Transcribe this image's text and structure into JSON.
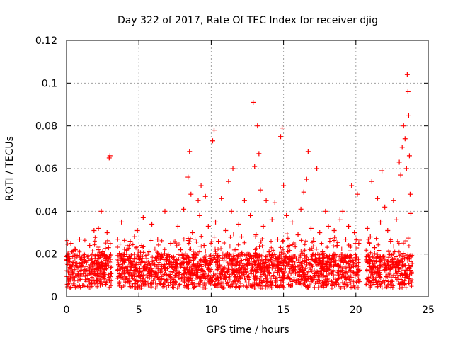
{
  "chart_data": {
    "type": "scatter",
    "title": "Day 322 of 2017, Rate Of TEC Index for receiver djig",
    "xlabel": "GPS time / hours",
    "ylabel": "ROTI / TECUs",
    "xlim": [
      0,
      25
    ],
    "ylim": [
      0,
      0.12
    ],
    "x_ticks": [
      0,
      5,
      10,
      15,
      20,
      25
    ],
    "x_tick_labels": [
      "0",
      "5",
      "10",
      "15",
      "20",
      "25"
    ],
    "y_ticks": [
      0,
      0.02,
      0.04,
      0.06,
      0.08,
      0.1,
      0.12
    ],
    "y_tick_labels": [
      "0",
      "0.02",
      "0.04",
      "0.06",
      "0.08",
      "0.1",
      "0.12"
    ],
    "grid": true,
    "marker": "+",
    "marker_color": "#ff0000",
    "series": [
      {
        "name": "ROTI",
        "points": [
          [
            0.1,
            0.012
          ],
          [
            0.2,
            0.018
          ],
          [
            0.3,
            0.025
          ],
          [
            0.4,
            0.009
          ],
          [
            0.5,
            0.016
          ],
          [
            0.6,
            0.022
          ],
          [
            0.8,
            0.011
          ],
          [
            0.9,
            0.027
          ],
          [
            1.0,
            0.014
          ],
          [
            1.2,
            0.02
          ],
          [
            1.3,
            0.008
          ],
          [
            1.5,
            0.017
          ],
          [
            1.6,
            0.024
          ],
          [
            1.8,
            0.012
          ],
          [
            1.9,
            0.031
          ],
          [
            2.0,
            0.019
          ],
          [
            2.1,
            0.01
          ],
          [
            2.2,
            0.032
          ],
          [
            2.3,
            0.015
          ],
          [
            2.4,
            0.04
          ],
          [
            2.5,
            0.021
          ],
          [
            2.6,
            0.013
          ],
          [
            2.7,
            0.018
          ],
          [
            2.8,
            0.03
          ],
          [
            2.9,
            0.023
          ],
          [
            2.95,
            0.065
          ],
          [
            3.0,
            0.066
          ],
          [
            3.1,
            0.011
          ],
          [
            3.6,
            0.015
          ],
          [
            3.8,
            0.035
          ],
          [
            3.9,
            0.012
          ],
          [
            4.0,
            0.02
          ],
          [
            4.2,
            0.014
          ],
          [
            4.4,
            0.026
          ],
          [
            4.5,
            0.01
          ],
          [
            4.7,
            0.018
          ],
          [
            4.9,
            0.031
          ],
          [
            5.0,
            0.016
          ],
          [
            5.2,
            0.024
          ],
          [
            5.3,
            0.037
          ],
          [
            5.5,
            0.013
          ],
          [
            5.7,
            0.021
          ],
          [
            5.9,
            0.034
          ],
          [
            6.1,
            0.015
          ],
          [
            6.3,
            0.027
          ],
          [
            6.6,
            0.012
          ],
          [
            6.8,
            0.04
          ],
          [
            7.0,
            0.019
          ],
          [
            7.2,
            0.025
          ],
          [
            7.5,
            0.014
          ],
          [
            7.7,
            0.033
          ],
          [
            7.9,
            0.022
          ],
          [
            8.1,
            0.041
          ],
          [
            8.3,
            0.016
          ],
          [
            8.4,
            0.056
          ],
          [
            8.5,
            0.068
          ],
          [
            8.6,
            0.048
          ],
          [
            8.7,
            0.03
          ],
          [
            8.9,
            0.02
          ],
          [
            9.1,
            0.045
          ],
          [
            9.2,
            0.038
          ],
          [
            9.3,
            0.052
          ],
          [
            9.5,
            0.024
          ],
          [
            9.6,
            0.047
          ],
          [
            9.8,
            0.033
          ],
          [
            9.9,
            0.017
          ],
          [
            10.1,
            0.073
          ],
          [
            10.2,
            0.078
          ],
          [
            10.3,
            0.035
          ],
          [
            10.5,
            0.026
          ],
          [
            10.7,
            0.046
          ],
          [
            10.9,
            0.019
          ],
          [
            11.0,
            0.031
          ],
          [
            11.2,
            0.054
          ],
          [
            11.4,
            0.04
          ],
          [
            11.5,
            0.06
          ],
          [
            11.7,
            0.022
          ],
          [
            11.9,
            0.034
          ],
          [
            12.1,
            0.028
          ],
          [
            12.3,
            0.045
          ],
          [
            12.5,
            0.017
          ],
          [
            12.7,
            0.038
          ],
          [
            12.9,
            0.091
          ],
          [
            13.0,
            0.061
          ],
          [
            13.1,
            0.029
          ],
          [
            13.2,
            0.08
          ],
          [
            13.3,
            0.067
          ],
          [
            13.4,
            0.05
          ],
          [
            13.6,
            0.033
          ],
          [
            13.8,
            0.045
          ],
          [
            14.0,
            0.021
          ],
          [
            14.2,
            0.036
          ],
          [
            14.4,
            0.044
          ],
          [
            14.6,
            0.027
          ],
          [
            14.8,
            0.075
          ],
          [
            14.9,
            0.079
          ],
          [
            15.0,
            0.052
          ],
          [
            15.2,
            0.038
          ],
          [
            15.4,
            0.024
          ],
          [
            15.6,
            0.035
          ],
          [
            15.8,
            0.019
          ],
          [
            16.0,
            0.029
          ],
          [
            16.2,
            0.041
          ],
          [
            16.4,
            0.049
          ],
          [
            16.6,
            0.055
          ],
          [
            16.7,
            0.068
          ],
          [
            16.9,
            0.032
          ],
          [
            17.1,
            0.026
          ],
          [
            17.3,
            0.06
          ],
          [
            17.5,
            0.03
          ],
          [
            17.7,
            0.021
          ],
          [
            17.9,
            0.04
          ],
          [
            18.1,
            0.033
          ],
          [
            18.3,
            0.018
          ],
          [
            18.5,
            0.031
          ],
          [
            18.7,
            0.024
          ],
          [
            18.9,
            0.036
          ],
          [
            19.1,
            0.04
          ],
          [
            19.3,
            0.027
          ],
          [
            19.5,
            0.033
          ],
          [
            19.7,
            0.052
          ],
          [
            19.9,
            0.03
          ],
          [
            20.1,
            0.048
          ],
          [
            20.2,
            0.025
          ],
          [
            20.8,
            0.032
          ],
          [
            21.0,
            0.028
          ],
          [
            21.1,
            0.054
          ],
          [
            21.3,
            0.023
          ],
          [
            21.5,
            0.046
          ],
          [
            21.7,
            0.035
          ],
          [
            21.8,
            0.059
          ],
          [
            22.0,
            0.042
          ],
          [
            22.2,
            0.031
          ],
          [
            22.4,
            0.026
          ],
          [
            22.6,
            0.045
          ],
          [
            22.8,
            0.036
          ],
          [
            23.0,
            0.063
          ],
          [
            23.1,
            0.057
          ],
          [
            23.2,
            0.07
          ],
          [
            23.3,
            0.08
          ],
          [
            23.4,
            0.074
          ],
          [
            23.5,
            0.06
          ],
          [
            23.55,
            0.104
          ],
          [
            23.6,
            0.096
          ],
          [
            23.65,
            0.085
          ],
          [
            23.7,
            0.066
          ],
          [
            23.75,
            0.048
          ],
          [
            23.8,
            0.039
          ]
        ]
      }
    ]
  }
}
